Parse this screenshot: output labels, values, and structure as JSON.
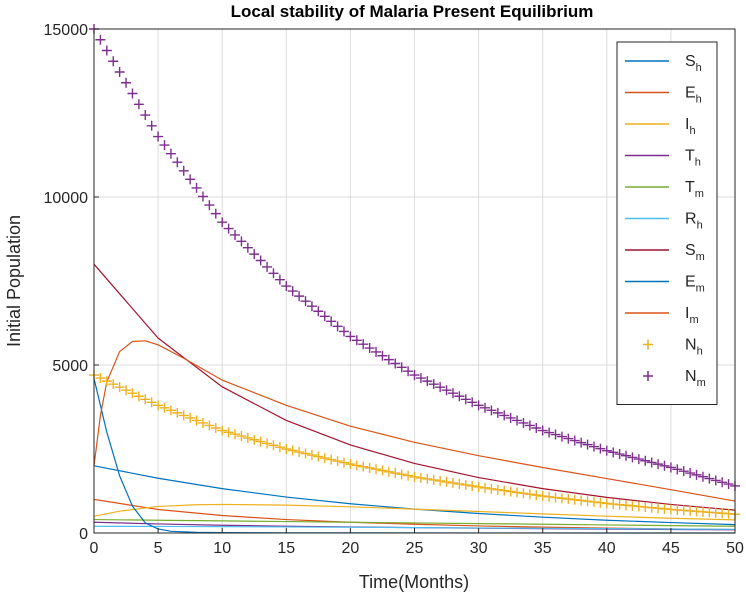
{
  "chart_data": {
    "type": "line",
    "title": "Local stability of Malaria Present Equilibrium",
    "xlabel": "Time(Months)",
    "ylabel": "Initial Population",
    "xlim": [
      0,
      50
    ],
    "ylim": [
      0,
      15000
    ],
    "xticks": [
      0,
      5,
      10,
      15,
      20,
      25,
      30,
      35,
      40,
      45,
      50
    ],
    "yticks": [
      0,
      5000,
      10000,
      15000
    ],
    "grid": true,
    "legend_position": "top-right",
    "series": [
      {
        "name": "S_h",
        "label": "S",
        "sub": "h",
        "color": "#0072BD",
        "style": "line",
        "x": [
          0,
          5,
          10,
          15,
          20,
          25,
          30,
          35,
          40,
          45,
          50
        ],
        "y": [
          2000,
          1630,
          1320,
          1070,
          870,
          710,
          580,
          470,
          380,
          310,
          250
        ]
      },
      {
        "name": "E_h",
        "label": "E",
        "sub": "h",
        "color": "#D95319",
        "style": "line",
        "x": [
          0,
          5,
          10,
          15,
          20,
          25,
          30,
          35,
          40,
          45,
          50
        ],
        "y": [
          1000,
          700,
          520,
          400,
          320,
          260,
          210,
          175,
          145,
          120,
          100
        ]
      },
      {
        "name": "I_h",
        "label": "I",
        "sub": "h",
        "color": "#EDB120",
        "style": "line",
        "x": [
          0,
          2,
          5,
          8,
          10,
          15,
          20,
          25,
          30,
          35,
          40,
          45,
          50
        ],
        "y": [
          500,
          650,
          790,
          840,
          850,
          830,
          780,
          710,
          640,
          570,
          500,
          440,
          390
        ]
      },
      {
        "name": "T_h",
        "label": "T",
        "sub": "h",
        "color": "#7E2F8E",
        "style": "line",
        "x": [
          0,
          5,
          10,
          15,
          20,
          25,
          30,
          35,
          40,
          45,
          50
        ],
        "y": [
          320,
          270,
          230,
          200,
          180,
          160,
          145,
          130,
          115,
          105,
          95
        ]
      },
      {
        "name": "T_m",
        "label": "T",
        "sub": "m",
        "color": "#77AC30",
        "style": "line",
        "x": [
          0,
          5,
          10,
          15,
          20,
          25,
          30,
          35,
          40,
          45,
          50
        ],
        "y": [
          400,
          380,
          360,
          340,
          320,
          300,
          280,
          260,
          240,
          220,
          200
        ]
      },
      {
        "name": "R_h",
        "label": "R",
        "sub": "h",
        "color": "#4DBEEE",
        "style": "line",
        "x": [
          0,
          5,
          10,
          15,
          20,
          25,
          30,
          35,
          40,
          45,
          50
        ],
        "y": [
          200,
          195,
          190,
          180,
          170,
          160,
          150,
          140,
          130,
          120,
          110
        ]
      },
      {
        "name": "S_m",
        "label": "S",
        "sub": "m",
        "color": "#A2142F",
        "style": "line",
        "x": [
          0,
          5,
          10,
          15,
          20,
          25,
          30,
          35,
          40,
          45,
          50
        ],
        "y": [
          8000,
          5800,
          4350,
          3350,
          2620,
          2070,
          1650,
          1320,
          1060,
          850,
          680
        ]
      },
      {
        "name": "E_m",
        "label": "E",
        "sub": "m",
        "color": "#0072BD",
        "style": "line",
        "x": [
          0,
          0.5,
          1,
          2,
          3,
          4,
          5,
          6,
          8,
          10,
          15,
          20,
          30,
          40,
          50
        ],
        "y": [
          4600,
          3800,
          3000,
          1700,
          800,
          300,
          120,
          50,
          20,
          10,
          5,
          3,
          2,
          1,
          0
        ]
      },
      {
        "name": "I_m",
        "label": "I",
        "sub": "m",
        "color": "#D95319",
        "style": "line",
        "x": [
          0,
          0.5,
          1,
          2,
          3,
          4,
          5,
          7,
          10,
          15,
          20,
          25,
          30,
          35,
          40,
          45,
          50
        ],
        "y": [
          2000,
          3500,
          4500,
          5400,
          5700,
          5720,
          5600,
          5200,
          4550,
          3800,
          3180,
          2700,
          2300,
          1950,
          1620,
          1290,
          950
        ]
      },
      {
        "name": "N_h",
        "label": "N",
        "sub": "h",
        "color": "#EDB120",
        "style": "plus",
        "x": [
          0,
          5,
          10,
          15,
          20,
          25,
          30,
          35,
          40,
          45,
          50
        ],
        "y": [
          4700,
          3800,
          3050,
          2500,
          2050,
          1670,
          1370,
          1100,
          880,
          700,
          560
        ]
      },
      {
        "name": "N_m",
        "label": "N",
        "sub": "m",
        "color": "#7E2F8E",
        "style": "plus",
        "x": [
          0,
          5,
          10,
          15,
          20,
          25,
          30,
          35,
          40,
          45,
          50
        ],
        "y": [
          15000,
          11800,
          9250,
          7350,
          5850,
          4700,
          3800,
          3050,
          2450,
          1950,
          1400
        ]
      }
    ]
  }
}
